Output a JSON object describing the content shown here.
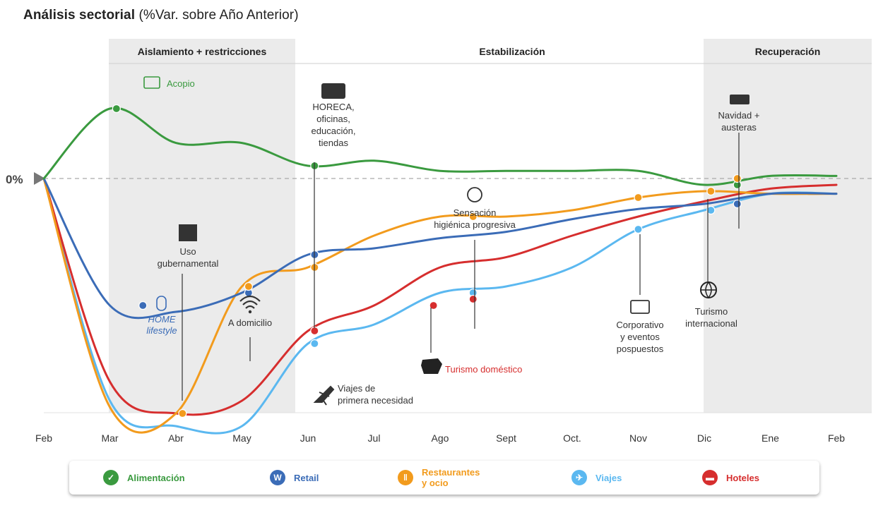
{
  "title": {
    "main": "Análisis sectorial",
    "sub": "(%Var. sobre Año Anterior)"
  },
  "phases": [
    {
      "label": "Aislamiento + restricciones",
      "shaded": true
    },
    {
      "label": "Estabilización",
      "shaded": false
    },
    {
      "label": "Recuperación",
      "shaded": true
    }
  ],
  "zero_label": "0%",
  "chart_data": {
    "type": "line",
    "x": [
      "Feb",
      "Mar",
      "Abr",
      "May",
      "Jun",
      "Jul",
      "Ago",
      "Sept",
      "Oct.",
      "Nov",
      "Dic",
      "Ene",
      "Feb"
    ],
    "ylabel": "",
    "series": [
      {
        "name": "Alimentación",
        "color": "#3a9a3f",
        "values": [
          0,
          0.55,
          0.28,
          0.28,
          0.1,
          0.14,
          0.06,
          0.06,
          0.06,
          0.06,
          -0.05,
          0.02,
          0.02
        ]
      },
      {
        "name": "Retail",
        "color": "#3b6cb7",
        "values": [
          0,
          -1.0,
          -1.05,
          -0.9,
          -0.6,
          -0.55,
          -0.47,
          -0.42,
          -0.32,
          -0.24,
          -0.2,
          -0.12,
          -0.12
        ]
      },
      {
        "name": "Restaurantes y ocio",
        "color": "#f29b1d",
        "values": [
          0,
          -1.8,
          -1.85,
          -0.85,
          -0.7,
          -0.45,
          -0.3,
          -0.3,
          -0.25,
          -0.15,
          -0.1,
          -0.12,
          -0.12
        ]
      },
      {
        "name": "Viajes",
        "color": "#5bb8f0",
        "values": [
          0,
          -1.75,
          -1.95,
          -1.95,
          -1.3,
          -1.15,
          -0.9,
          -0.85,
          -0.7,
          -0.4,
          -0.25,
          -0.12,
          -0.12
        ]
      },
      {
        "name": "Hoteles",
        "color": "#d62e2e",
        "values": [
          0,
          -1.6,
          -1.85,
          -1.75,
          -1.2,
          -1.0,
          -0.7,
          -0.62,
          -0.45,
          -0.3,
          -0.18,
          -0.08,
          -0.05
        ]
      }
    ],
    "annotations": [
      {
        "text": "Acopio",
        "color": "#3a9a3f",
        "icon": "basket-icon"
      },
      {
        "text": "HORECA,\noficinas,\neducación,\ntiendas",
        "color": "#333333",
        "icon": "cash-register-icon"
      },
      {
        "text": "Uso\ngubernamental",
        "color": "#333333",
        "icon": "government-building-icon"
      },
      {
        "text": "HOME\nlifestyle",
        "color": "#3b6cb7",
        "icon": "mouse-icon"
      },
      {
        "text": "A domicilio",
        "color": "#333333",
        "icon": "wifi-icon"
      },
      {
        "text": "Viajes de\nprimera necesidad",
        "color": "#333333",
        "icon": "airplane-icon"
      },
      {
        "text": "Sensación\nhigiénica progresiva",
        "color": "#333333",
        "icon": "virus-icon"
      },
      {
        "text": "Turismo doméstico",
        "color": "#d62e2e",
        "icon": "spain-map-icon"
      },
      {
        "text": "Corporativo\ny eventos\npospuestos",
        "color": "#333333",
        "icon": "briefcase-icon"
      },
      {
        "text": "Turismo\ninternacional",
        "color": "#333333",
        "icon": "globe-icon"
      },
      {
        "text": "Navidad +\nausteras",
        "color": "#333333",
        "icon": "gift-icon"
      }
    ]
  },
  "legend": [
    {
      "label": "Alimentación",
      "color": "#3a9a3f",
      "icon": "basket-icon"
    },
    {
      "label": "Retail",
      "color": "#3b6cb7",
      "icon": "retail-icon"
    },
    {
      "label": "Restaurantes\ny ocio",
      "color": "#f29b1d",
      "icon": "cutlery-icon"
    },
    {
      "label": "Viajes",
      "color": "#5bb8f0",
      "icon": "travel-icon"
    },
    {
      "label": "Hoteles",
      "color": "#d62e2e",
      "icon": "bed-icon"
    }
  ]
}
